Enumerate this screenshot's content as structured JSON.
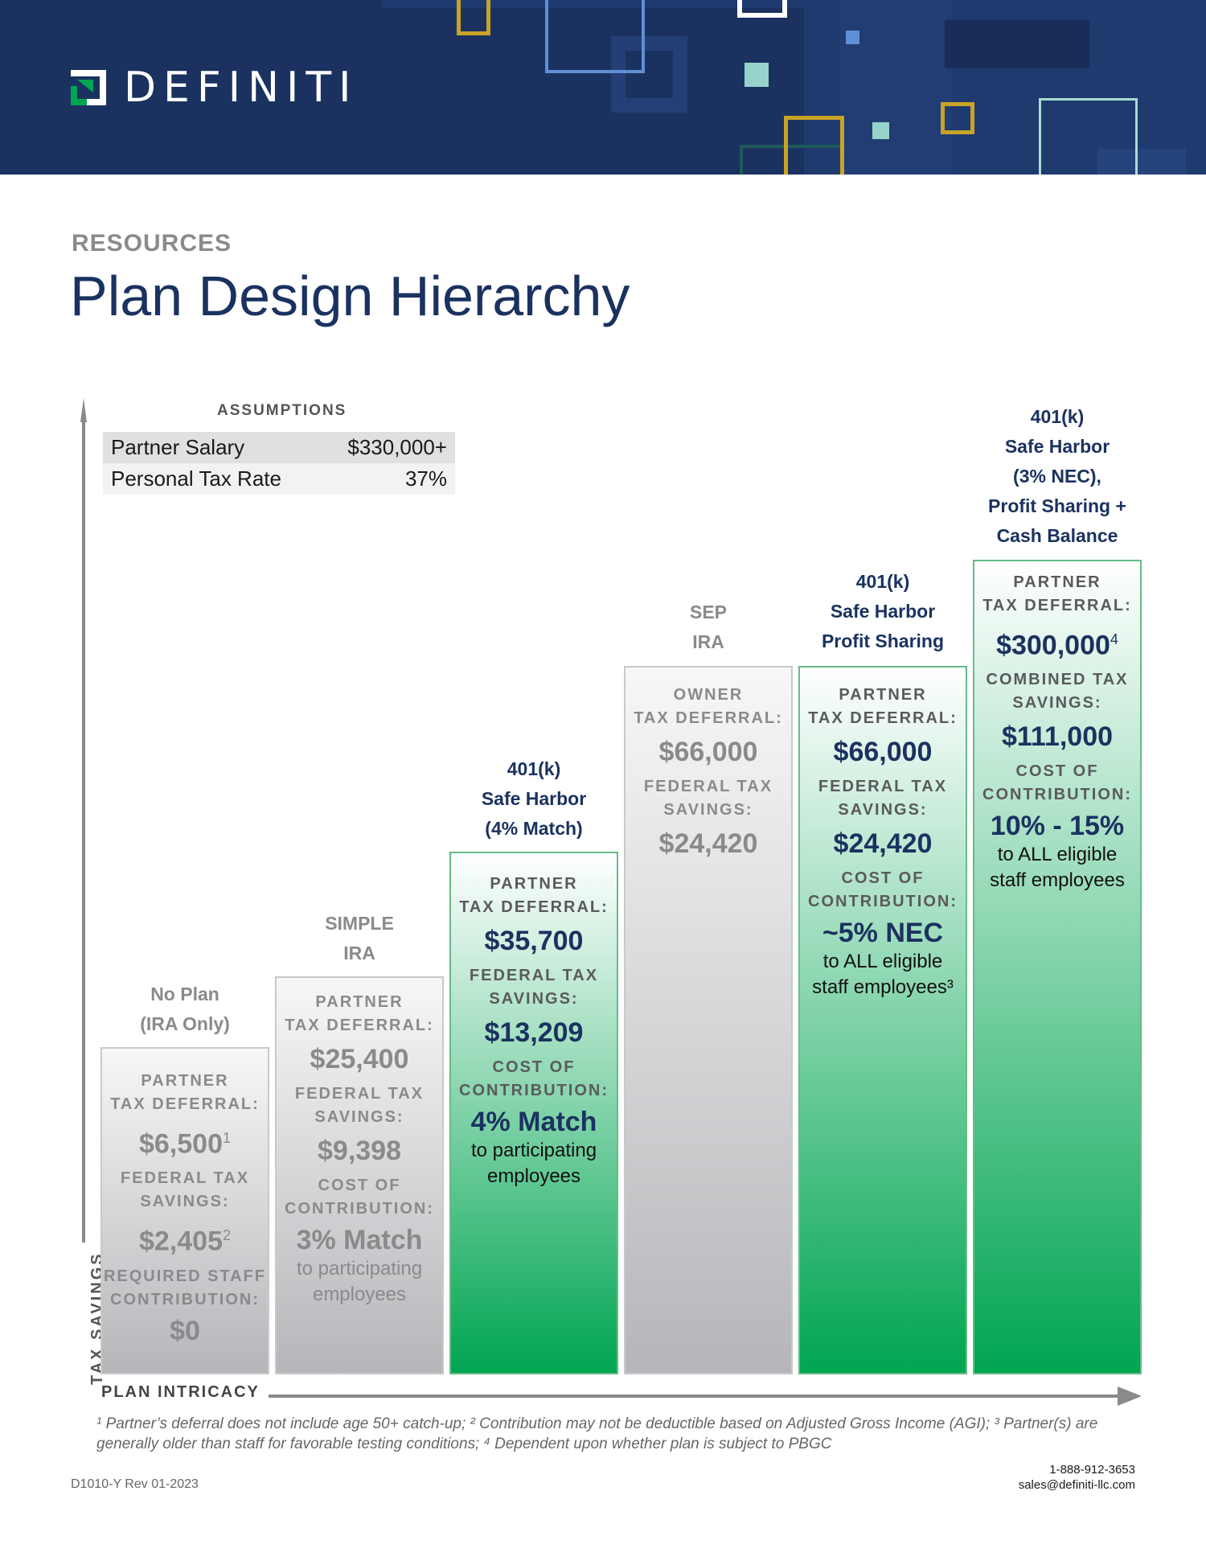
{
  "brand": {
    "name": "DEFINITI",
    "navy": "#1b3260",
    "green": "#00a551",
    "gold": "#c9a227"
  },
  "header": {
    "eyebrow": "RESOURCES",
    "title": "Plan Design Hierarchy"
  },
  "assumptions": {
    "heading": "ASSUMPTIONS",
    "rows": [
      {
        "label": "Partner Salary",
        "value": "$330,000+"
      },
      {
        "label": "Personal Tax Rate",
        "value": "37%"
      }
    ]
  },
  "axes": {
    "y_label": "TAX SAVINGS",
    "x_label": "PLAN INTRICACY"
  },
  "plans": [
    {
      "style": "grey",
      "heading": [
        "No Plan",
        "(IRA Only)"
      ],
      "deferral_label": [
        "PARTNER",
        "TAX DEFERRAL:"
      ],
      "deferral": "$6,500",
      "deferral_sup": "1",
      "savings_label": [
        "FEDERAL TAX",
        "SAVINGS:"
      ],
      "savings": "$2,405",
      "savings_sup": "2",
      "cost_label": [
        "REQUIRED STAFF",
        "CONTRIBUTION:"
      ],
      "cost": "$0",
      "cost_note": []
    },
    {
      "style": "grey",
      "heading": [
        "SIMPLE",
        "IRA"
      ],
      "deferral_label": [
        "PARTNER",
        "TAX DEFERRAL:"
      ],
      "deferral": "$25,400",
      "deferral_sup": "",
      "savings_label": [
        "FEDERAL TAX",
        "SAVINGS:"
      ],
      "savings": "$9,398",
      "savings_sup": "",
      "cost_label": [
        "COST OF",
        "CONTRIBUTION:"
      ],
      "cost": "3% Match",
      "cost_note": [
        "to participating",
        "employees"
      ]
    },
    {
      "style": "green",
      "heading": [
        "401(k)",
        "Safe Harbor",
        "(4% Match)"
      ],
      "deferral_label": [
        "PARTNER",
        "TAX DEFERRAL:"
      ],
      "deferral": "$35,700",
      "deferral_sup": "",
      "savings_label": [
        "FEDERAL TAX",
        "SAVINGS:"
      ],
      "savings": "$13,209",
      "savings_sup": "",
      "cost_label": [
        "COST OF",
        "CONTRIBUTION:"
      ],
      "cost": "4% Match",
      "cost_note": [
        "to participating",
        "employees"
      ]
    },
    {
      "style": "grey",
      "heading": [
        "SEP",
        "IRA"
      ],
      "deferral_label": [
        "OWNER",
        "TAX DEFERRAL:"
      ],
      "deferral": "$66,000",
      "deferral_sup": "",
      "savings_label": [
        "FEDERAL TAX",
        "SAVINGS:"
      ],
      "savings": "$24,420",
      "savings_sup": "",
      "cost_label": [],
      "cost": "",
      "cost_note": []
    },
    {
      "style": "green",
      "heading": [
        "401(k)",
        "Safe Harbor",
        "Profit Sharing"
      ],
      "deferral_label": [
        "PARTNER",
        "TAX DEFERRAL:"
      ],
      "deferral": "$66,000",
      "deferral_sup": "",
      "savings_label": [
        "FEDERAL TAX",
        "SAVINGS:"
      ],
      "savings": "$24,420",
      "savings_sup": "",
      "cost_label": [
        "COST OF",
        "CONTRIBUTION:"
      ],
      "cost": "~5% NEC",
      "cost_note": [
        "to ALL eligible",
        "staff employees³"
      ]
    },
    {
      "style": "green",
      "heading": [
        "401(k)",
        "Safe Harbor",
        "(3% NEC),",
        "Profit Sharing +",
        "Cash Balance"
      ],
      "deferral_label": [
        "PARTNER",
        "TAX DEFERRAL:"
      ],
      "deferral": "$300,000",
      "deferral_sup": "4",
      "savings_label": [
        "COMBINED TAX",
        "SAVINGS:"
      ],
      "savings": "$111,000",
      "savings_sup": "",
      "cost_label": [
        "COST OF",
        "CONTRIBUTION:"
      ],
      "cost": "10% - 15%",
      "cost_note": [
        "to ALL eligible",
        "staff employees"
      ]
    }
  ],
  "footnote": "¹ Partner’s deferral does not include age 50+ catch-up; ² Contribution may not be deductible based on Adjusted Gross Income (AGI); ³ Partner(s) are generally older than staff for favorable testing conditions; ⁴ Dependent upon whether plan is subject to PBGC",
  "footer": {
    "doc_id": "D1010-Y Rev 01-2023",
    "phone": "1-888-912-3653",
    "email": "sales@definiti-llc.com"
  }
}
